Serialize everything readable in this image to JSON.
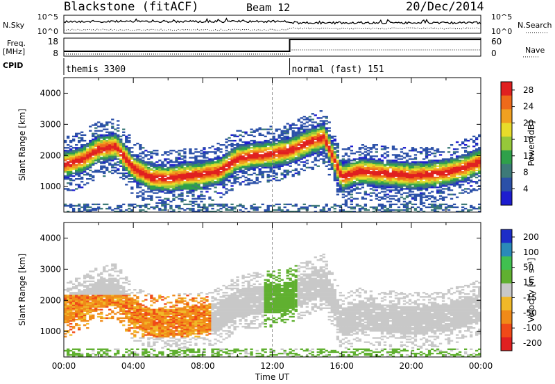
{
  "header": {
    "title": "Blackstone (fitACF)",
    "beam": "Beam 12",
    "date": "20/Dec/2014"
  },
  "side_labels": {
    "nsky": "N.Sky",
    "freq": "Freq.",
    "freq_unit": "[MHz]",
    "cpid": "CPID",
    "nsearch": "N.Search",
    "nave": "Nave"
  },
  "chart_data": [
    {
      "type": "line",
      "panel": "noise",
      "yticks_left": [
        "10^5",
        "10^0"
      ],
      "yticks_right": [
        "10^5",
        "10^0"
      ],
      "series": [
        {
          "name": "N.Sky",
          "style": "solid"
        },
        {
          "name": "N.Search",
          "style": "dotted"
        }
      ]
    },
    {
      "type": "line",
      "panel": "frequency",
      "left_ticks": [
        "18",
        "8"
      ],
      "right_ticks": [
        "60",
        "0"
      ],
      "step_time_hours": 13.0,
      "freq_before": 10,
      "freq_after": 18
    },
    {
      "type": "table",
      "panel": "cpid",
      "segments": [
        {
          "label": "themis 3300",
          "start_hours": 0
        },
        {
          "label": "normal (fast) 151",
          "start_hours": 13.0
        }
      ]
    },
    {
      "type": "heatmap",
      "panel": "power",
      "ylabel": "Slant Range [km]",
      "yticks": [
        "1000",
        "2000",
        "3000",
        "4000"
      ],
      "ylim": [
        180,
        4500
      ],
      "xlim_hours": [
        0,
        24
      ],
      "colorbar_label": "Power [dB]",
      "colorbar_ticks": [
        "4",
        "8",
        "12",
        "16",
        "20",
        "24",
        "28"
      ],
      "colorbar_range": [
        0,
        30
      ],
      "colors": [
        "#1d1dcf",
        "#2b50a8",
        "#3d7a78",
        "#2fa04a",
        "#96c83a",
        "#e8dc2a",
        "#f0a020",
        "#ee6a1a",
        "#e02020"
      ],
      "ridge_km": [
        1700,
        1850,
        2200,
        2300,
        1600,
        1300,
        1250,
        1350,
        1400,
        1500,
        1900,
        2000,
        2050,
        2150,
        2400,
        2600,
        1300,
        1500,
        1450,
        1400,
        1350,
        1380,
        1450,
        1600,
        1800
      ]
    },
    {
      "type": "heatmap",
      "panel": "velocity",
      "ylabel": "Slant Range [km]",
      "yticks": [
        "1000",
        "2000",
        "3000",
        "4000"
      ],
      "ylim": [
        180,
        4500
      ],
      "colorbar_label": "Velocity [m s⁻¹]",
      "colorbar_ticks": [
        "200",
        "100",
        "50",
        "15",
        "-15",
        "-50",
        "-100",
        "-200"
      ],
      "colorbar_range": [
        -250,
        250
      ],
      "colors": [
        "#e02020",
        "#f04a18",
        "#f08a18",
        "#f0b828",
        "#c8c8c8",
        "#60b030",
        "#40c050",
        "#2a8ab8",
        "#1d2dc8"
      ]
    }
  ],
  "x_axis": {
    "ticks": [
      "00:00",
      "04:00",
      "08:00",
      "12:00",
      "16:00",
      "20:00",
      "00:00"
    ],
    "label": "Time UT"
  }
}
